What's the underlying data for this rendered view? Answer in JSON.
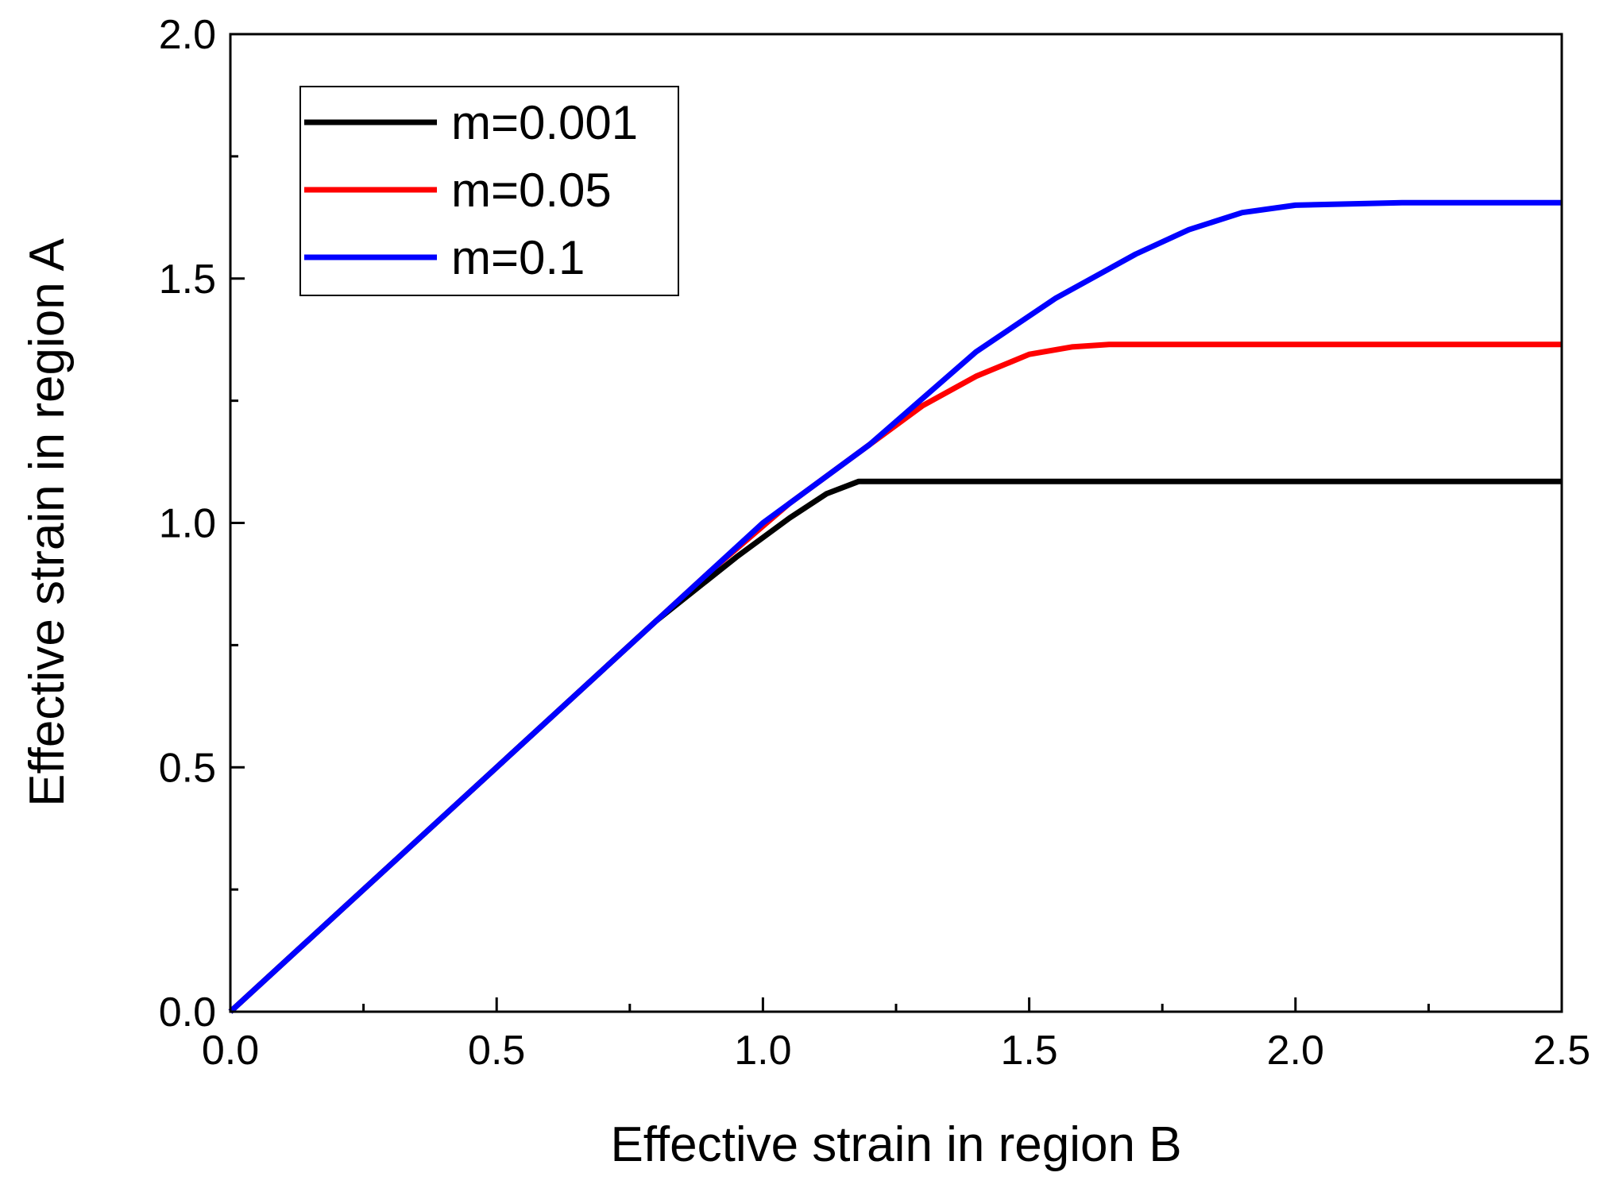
{
  "chart_data": {
    "type": "line",
    "title": "",
    "xlabel": "Effective strain in region B",
    "ylabel": "Effective strain in region A",
    "xlim": [
      0,
      2.5
    ],
    "ylim": [
      0,
      2.0
    ],
    "x_ticks": [
      {
        "value": 0.0,
        "label": "0.0"
      },
      {
        "value": 0.5,
        "label": "0.5"
      },
      {
        "value": 1.0,
        "label": "1.0"
      },
      {
        "value": 1.5,
        "label": "1.5"
      },
      {
        "value": 2.0,
        "label": "2.0"
      },
      {
        "value": 2.5,
        "label": "2.5"
      }
    ],
    "y_ticks": [
      {
        "value": 0.0,
        "label": "0.0"
      },
      {
        "value": 0.5,
        "label": "0.5"
      },
      {
        "value": 1.0,
        "label": "1.0"
      },
      {
        "value": 1.5,
        "label": "1.5"
      },
      {
        "value": 2.0,
        "label": "2.0"
      }
    ],
    "x_minor_ticks": [
      0.25,
      0.75,
      1.25,
      1.75,
      2.25
    ],
    "y_minor_ticks": [
      0.25,
      0.75,
      1.25,
      1.75
    ],
    "grid": false,
    "legend_position": "top-left",
    "series": [
      {
        "name": "m=0.001",
        "color": "#000000",
        "points": [
          [
            0,
            0
          ],
          [
            0.5,
            0.5
          ],
          [
            0.8,
            0.8
          ],
          [
            0.95,
            0.93
          ],
          [
            1.05,
            1.01
          ],
          [
            1.12,
            1.06
          ],
          [
            1.18,
            1.085
          ],
          [
            1.5,
            1.085
          ],
          [
            2.0,
            1.085
          ],
          [
            2.5,
            1.085
          ]
        ]
      },
      {
        "name": "m=0.05",
        "color": "#ff0000",
        "points": [
          [
            0,
            0
          ],
          [
            0.5,
            0.5
          ],
          [
            0.9,
            0.9
          ],
          [
            1.05,
            1.04
          ],
          [
            1.2,
            1.16
          ],
          [
            1.3,
            1.24
          ],
          [
            1.4,
            1.3
          ],
          [
            1.5,
            1.345
          ],
          [
            1.58,
            1.36
          ],
          [
            1.65,
            1.365
          ],
          [
            2.0,
            1.365
          ],
          [
            2.5,
            1.365
          ]
        ]
      },
      {
        "name": "m=0.1",
        "color": "#0000ff",
        "points": [
          [
            0,
            0
          ],
          [
            0.5,
            0.5
          ],
          [
            1.0,
            1.0
          ],
          [
            1.2,
            1.16
          ],
          [
            1.4,
            1.35
          ],
          [
            1.55,
            1.46
          ],
          [
            1.7,
            1.55
          ],
          [
            1.8,
            1.6
          ],
          [
            1.9,
            1.635
          ],
          [
            2.0,
            1.65
          ],
          [
            2.2,
            1.655
          ],
          [
            2.5,
            1.655
          ]
        ]
      }
    ]
  }
}
